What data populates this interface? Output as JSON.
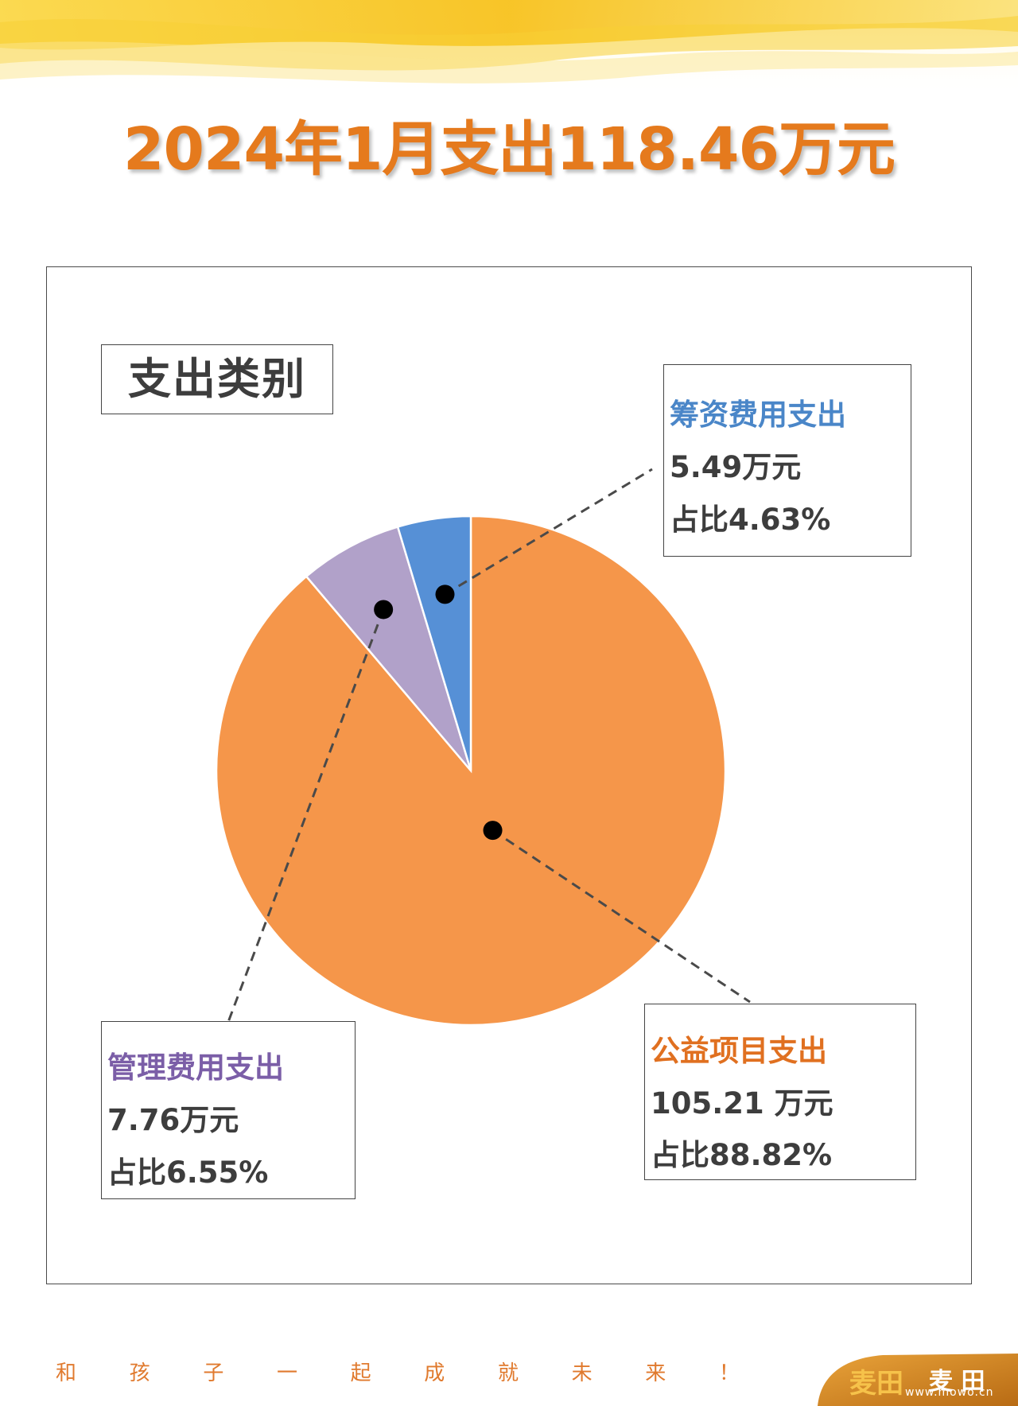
{
  "title": "2024年1月支出118.46万元",
  "section_label": "支出类别",
  "colors": {
    "gongyi": "#f5964a",
    "guanli": "#b1a1c9",
    "choufei": "#5690d6",
    "title": "#e57a1d",
    "guanli_label": "#7b5ea7",
    "choufei_label": "#4a86c8",
    "gongyi_label": "#e07020"
  },
  "chart_data": {
    "type": "pie",
    "title": "支出类别",
    "total": 118.46,
    "unit": "万元",
    "slices": [
      {
        "name": "公益项目支出",
        "value": 105.21,
        "percent": 88.82,
        "amount_label": "105.21 万元",
        "percent_label": "占比88.82%"
      },
      {
        "name": "管理费用支出",
        "value": 7.76,
        "percent": 6.55,
        "amount_label": "7.76万元",
        "percent_label": "占比6.55%"
      },
      {
        "name": "筹资费用支出",
        "value": 5.49,
        "percent": 4.63,
        "amount_label": "5.49万元",
        "percent_label": "占比4.63%"
      }
    ]
  },
  "slogan": [
    "和",
    "孩",
    "子",
    "一",
    "起",
    "成",
    "就",
    "未",
    "来",
    "！"
  ],
  "logo": {
    "text_cn": "麦田",
    "text_cn2": "麦 田",
    "url": "www.mowo.cn"
  }
}
